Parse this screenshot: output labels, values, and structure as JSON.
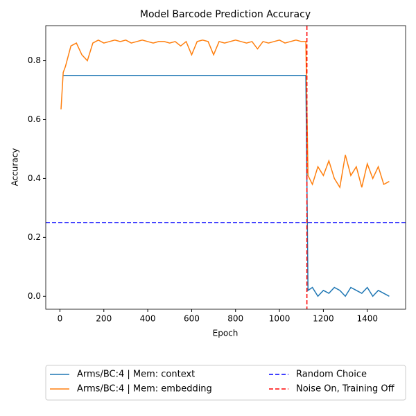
{
  "chart_data": {
    "type": "line",
    "title": "Model Barcode Prediction Accuracy",
    "x_label": "Epoch",
    "y_label": "Accuracy",
    "x": [
      5,
      15,
      25,
      50,
      75,
      100,
      125,
      150,
      175,
      200,
      225,
      250,
      275,
      300,
      325,
      350,
      375,
      400,
      425,
      450,
      475,
      500,
      525,
      550,
      575,
      600,
      625,
      650,
      675,
      700,
      725,
      750,
      775,
      800,
      825,
      850,
      875,
      900,
      925,
      950,
      975,
      1000,
      1025,
      1050,
      1075,
      1100,
      1120,
      1130,
      1150,
      1175,
      1200,
      1225,
      1250,
      1275,
      1300,
      1325,
      1350,
      1375,
      1400,
      1425,
      1450,
      1475,
      1500
    ],
    "series": [
      {
        "name": "Arms/BC:4 | Mem: context",
        "color": "#1f77b4",
        "values": [
          null,
          0.75,
          0.75,
          0.75,
          0.75,
          0.75,
          0.75,
          0.75,
          0.75,
          0.75,
          0.75,
          0.75,
          0.75,
          0.75,
          0.75,
          0.75,
          0.75,
          0.75,
          0.75,
          0.75,
          0.75,
          0.75,
          0.75,
          0.75,
          0.75,
          0.75,
          0.75,
          0.75,
          0.75,
          0.75,
          0.75,
          0.75,
          0.75,
          0.75,
          0.75,
          0.75,
          0.75,
          0.75,
          0.75,
          0.75,
          0.75,
          0.75,
          0.75,
          0.75,
          0.75,
          0.75,
          0.75,
          0.02,
          0.03,
          0.0,
          0.02,
          0.01,
          0.03,
          0.02,
          0.0,
          0.03,
          0.02,
          0.01,
          0.03,
          0.0,
          0.02,
          0.01,
          0.0
        ]
      },
      {
        "name": "Arms/BC:4 | Mem: embedding",
        "color": "#ff7f0e",
        "values": [
          0.635,
          0.76,
          0.78,
          0.85,
          0.86,
          0.82,
          0.8,
          0.86,
          0.87,
          0.86,
          0.865,
          0.87,
          0.865,
          0.87,
          0.86,
          0.865,
          0.87,
          0.865,
          0.86,
          0.865,
          0.865,
          0.86,
          0.865,
          0.85,
          0.865,
          0.82,
          0.865,
          0.87,
          0.865,
          0.82,
          0.865,
          0.86,
          0.865,
          0.87,
          0.865,
          0.86,
          0.865,
          0.84,
          0.865,
          0.86,
          0.865,
          0.87,
          0.86,
          0.865,
          0.87,
          0.865,
          0.865,
          0.41,
          0.38,
          0.44,
          0.41,
          0.46,
          0.4,
          0.37,
          0.48,
          0.41,
          0.44,
          0.37,
          0.45,
          0.4,
          0.44,
          0.38,
          0.39
        ]
      }
    ],
    "hlines": [
      {
        "name": "Random Choice",
        "color": "#0000ff",
        "value": 0.25
      }
    ],
    "vlines": [
      {
        "name": "Noise On, Training Off",
        "color": "#ff0000",
        "value": 1125
      }
    ],
    "xlim": [
      -64.5,
      1574.5
    ],
    "ylim": [
      -0.044,
      0.919
    ],
    "xticks": [
      0,
      200,
      400,
      600,
      800,
      1000,
      1200,
      1400
    ],
    "yticks": [
      {
        "value": 0,
        "label": "0.0"
      },
      {
        "value": 0.2,
        "label": "0.2"
      },
      {
        "value": 0.4,
        "label": "0.4"
      },
      {
        "value": 0.6,
        "label": "0.6"
      },
      {
        "value": 0.8,
        "label": "0.8"
      }
    ],
    "legend": "bottom"
  }
}
